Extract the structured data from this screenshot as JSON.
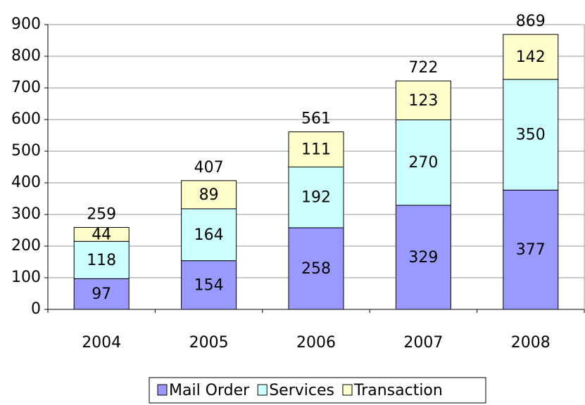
{
  "chart_data": {
    "type": "stacked_bar",
    "categories": [
      "2004",
      "2005",
      "2006",
      "2007",
      "2008"
    ],
    "series": [
      {
        "name": "Mail Order",
        "color": "#9999ff",
        "values": [
          97,
          154,
          258,
          329,
          377
        ]
      },
      {
        "name": "Services",
        "color": "#ccffff",
        "values": [
          118,
          164,
          192,
          270,
          350
        ]
      },
      {
        "name": "Transaction",
        "color": "#ffffcc",
        "values": [
          44,
          89,
          111,
          123,
          142
        ]
      }
    ],
    "totals": [
      259,
      407,
      561,
      722,
      869
    ],
    "ylim": [
      0,
      900
    ],
    "yticks": [
      0,
      100,
      200,
      300,
      400,
      500,
      600,
      700,
      800,
      900
    ],
    "grid": true,
    "legend": "bottom"
  }
}
